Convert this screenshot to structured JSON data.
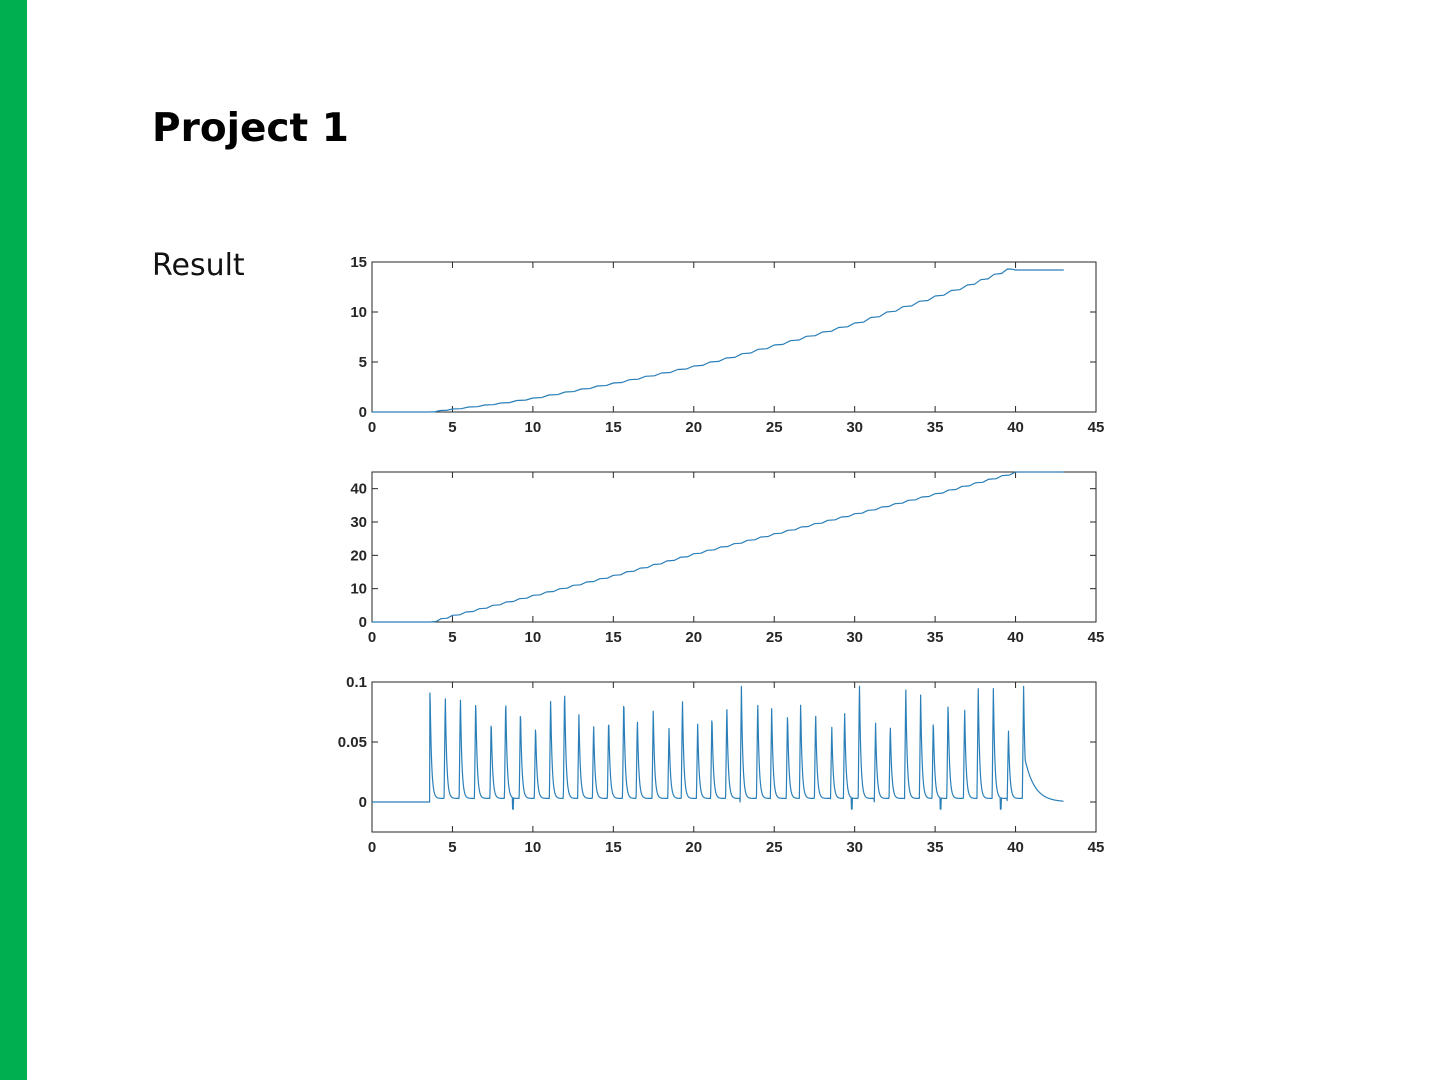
{
  "slide": {
    "title": "Project 1",
    "label": "Result",
    "accent_color": "#00b050"
  },
  "chart_data": [
    {
      "type": "line",
      "xlim": [
        0,
        45
      ],
      "ylim": [
        0,
        15
      ],
      "xticks": [
        0,
        5,
        10,
        15,
        20,
        25,
        30,
        35,
        40,
        45
      ],
      "yticks": [
        0,
        5,
        10,
        15
      ],
      "line_color": "#2a7fb8",
      "series": [
        {
          "x": [
            0,
            3.5,
            5,
            8,
            10,
            12,
            15,
            18,
            20,
            22,
            25,
            28,
            30,
            32,
            35,
            37,
            39.5,
            40,
            43
          ],
          "y": [
            0,
            0,
            0.3,
            0.9,
            1.4,
            2.0,
            2.9,
            3.9,
            4.6,
            5.4,
            6.7,
            8.0,
            8.9,
            10.0,
            11.6,
            12.7,
            14.3,
            14.2,
            14.2
          ]
        }
      ]
    },
    {
      "type": "line",
      "xlim": [
        0,
        45
      ],
      "ylim": [
        0,
        45
      ],
      "xticks": [
        0,
        5,
        10,
        15,
        20,
        25,
        30,
        35,
        40,
        45
      ],
      "yticks": [
        0,
        10,
        20,
        30,
        40
      ],
      "line_color": "#2a7fb8",
      "series": [
        {
          "x": [
            0,
            3.6,
            5,
            10,
            15,
            20,
            25,
            30,
            35,
            40,
            43
          ],
          "y": [
            0,
            0,
            2,
            8,
            14,
            20.5,
            26.5,
            32.5,
            38.5,
            45,
            45
          ]
        }
      ]
    },
    {
      "type": "line",
      "xlim": [
        0,
        45
      ],
      "ylim": [
        -0.025,
        0.1
      ],
      "xticks": [
        0,
        5,
        10,
        15,
        20,
        25,
        30,
        35,
        40,
        45
      ],
      "yticks": [
        0,
        0.05,
        0.1
      ],
      "ytick_labels": [
        "0",
        "0.05",
        "0.1"
      ],
      "line_color": "#2a7fb8",
      "series": [
        {
          "x_start": 0,
          "x_step": 0.1,
          "y_generator": "pulse-train",
          "pulse_start": 3.6,
          "pulse_end": 40.6,
          "pulse_period": 0.92,
          "peak_min": 0.06,
          "peak_max": 0.1,
          "decay_end": 43
        }
      ]
    }
  ]
}
